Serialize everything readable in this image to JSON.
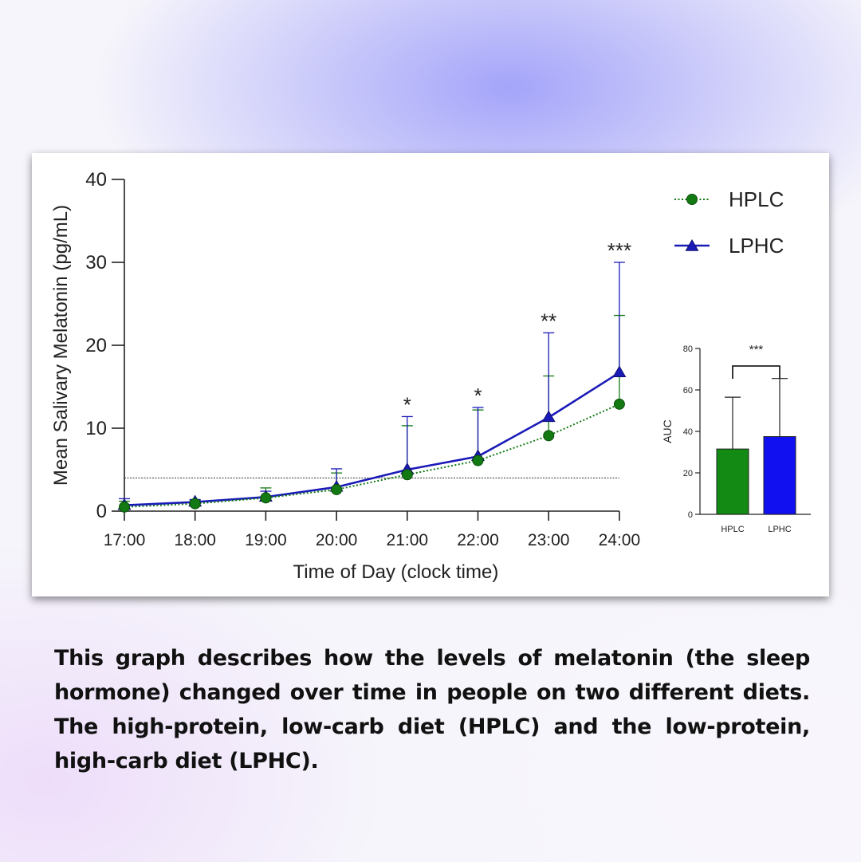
{
  "caption": "This graph describes how the levels of melatonin (the sleep hormone) changed over time in people on two different diets. The high-protein, low-carb diet (HPLC) and the low-protein, high-carb diet (LPHC).",
  "colors": {
    "hplc": "#137a13",
    "lphc": "#1a1ab8",
    "hplc_bar": "#138a13",
    "lphc_bar": "#1010f0"
  },
  "chart_data": [
    {
      "type": "line",
      "xlabel": "Time of Day (clock time)",
      "ylabel": "Mean Salivary Melatonin (pg/mL)",
      "categories": [
        "17:00",
        "18:00",
        "19:00",
        "20:00",
        "21:00",
        "22:00",
        "23:00",
        "24:00"
      ],
      "ylim": [
        0,
        40
      ],
      "yticks": [
        0,
        10,
        20,
        30,
        40
      ],
      "threshold_line": 4,
      "legend_position": "top-right",
      "series": [
        {
          "name": "HPLC",
          "marker": "circle",
          "line_style": "dotted",
          "values": [
            0.5,
            0.9,
            1.6,
            2.6,
            4.4,
            6.1,
            9.1,
            12.9
          ],
          "error_upper": [
            1.2,
            1.3,
            2.8,
            4.6,
            10.3,
            12.2,
            16.3,
            23.6
          ]
        },
        {
          "name": "LPHC",
          "marker": "triangle",
          "line_style": "solid",
          "values": [
            0.7,
            1.1,
            1.7,
            2.9,
            5.0,
            6.6,
            11.3,
            16.7
          ],
          "error_upper": [
            1.5,
            1.4,
            2.4,
            5.1,
            11.4,
            12.5,
            21.5,
            30.0
          ]
        }
      ],
      "annotations": [
        {
          "category": "21:00",
          "text": "*"
        },
        {
          "category": "22:00",
          "text": "*"
        },
        {
          "category": "23:00",
          "text": "**"
        },
        {
          "category": "24:00",
          "text": "***"
        }
      ]
    },
    {
      "type": "bar",
      "ylabel": "AUC",
      "categories": [
        "HPLC",
        "LPHC"
      ],
      "values": [
        31.5,
        37.5
      ],
      "error_upper": [
        56.5,
        65.5
      ],
      "ylim": [
        0,
        80
      ],
      "yticks": [
        0,
        20,
        40,
        60,
        80
      ],
      "significance": "***"
    }
  ]
}
